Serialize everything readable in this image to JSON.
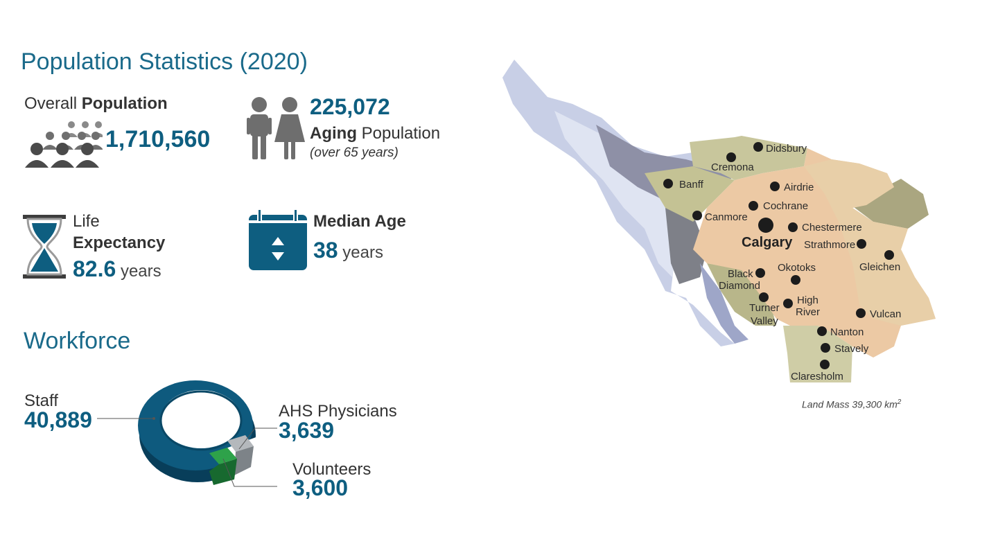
{
  "population": {
    "title": "Population Statistics (2020)",
    "overall": {
      "label_prefix": "Overall ",
      "label_strong": "Population",
      "value": "1,710,560",
      "icon": "crowd-icon"
    },
    "aging": {
      "value": "225,072",
      "label_strong": "Aging",
      "label_rest": " Population",
      "note": "(over 65 years)",
      "icon": "elderly-couple-icon"
    },
    "life_expectancy": {
      "label_line1": "Life",
      "label_line2": "Expectancy",
      "value": "82.6",
      "unit": " years",
      "icon": "hourglass-icon"
    },
    "median_age": {
      "label": "Median Age",
      "value": "38",
      "unit": " years",
      "icon": "calendar-icon"
    }
  },
  "workforce": {
    "title": "Workforce",
    "staff": {
      "label": "Staff",
      "value": "40,889",
      "color": "#0e5a7e"
    },
    "physicians": {
      "label": "AHS Physicians",
      "value": "3,639",
      "color": "#9aa0a6"
    },
    "volunteers": {
      "label": "Volunteers",
      "value": "3,600",
      "color": "#1f8a3c"
    }
  },
  "map": {
    "land_mass_text": "Land Mass 39,300 km",
    "land_mass_sup": "2",
    "cities": {
      "didsbury": "Didsbury",
      "cremona": "Cremona",
      "banff": "Banff",
      "airdrie": "Airdrie",
      "cochrane": "Cochrane",
      "canmore": "Canmore",
      "chestermere": "Chestermere",
      "calgary": "Calgary",
      "strathmore": "Strathmore",
      "gleichen": "Gleichen",
      "black": "Black",
      "diamond": "Diamond",
      "okotoks": "Okotoks",
      "turner": "Turner",
      "valley": "Valley",
      "high": "High",
      "river": "River",
      "vulcan": "Vulcan",
      "nanton": "Nanton",
      "stavely": "Stavely",
      "claresholm": "Claresholm"
    }
  }
}
